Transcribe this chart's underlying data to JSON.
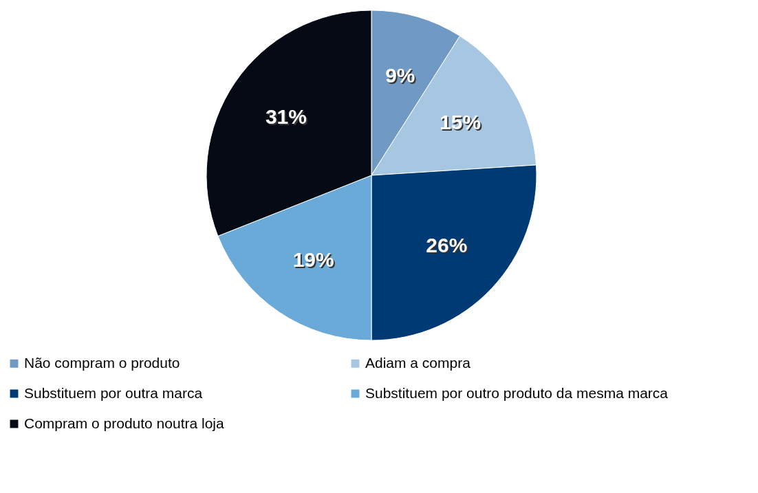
{
  "chart_data": {
    "type": "pie",
    "categories": [
      "Não compram o produto",
      "Adiam a compra",
      "Substituem por outra marca",
      "Substituem por outro produto da mesma marca",
      "Compram o produto noutra loja"
    ],
    "values": [
      9,
      15,
      26,
      19,
      31
    ],
    "colors": [
      "#7099c4",
      "#a6c6e2",
      "#003a75",
      "#6aaad9",
      "#050a14"
    ],
    "value_labels": [
      "9%",
      "15%",
      "26%",
      "19%",
      "31%"
    ],
    "legend": "bottom"
  }
}
